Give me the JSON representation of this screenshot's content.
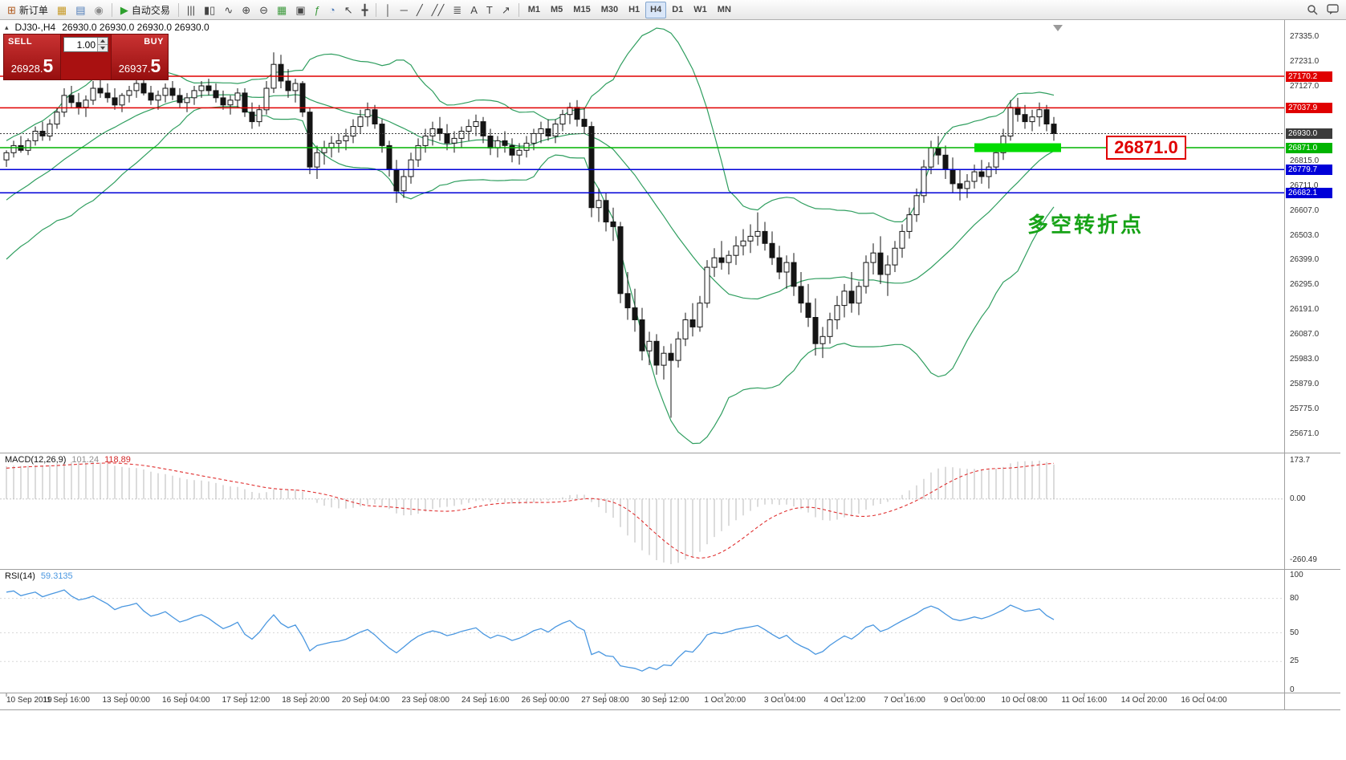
{
  "toolbar": {
    "new_order": {
      "label": "新订单",
      "glyph": "⊞"
    },
    "autotrading": {
      "label": "自动交易",
      "glyph": "▶"
    },
    "icons_left": [
      {
        "name": "charts-grid-icon",
        "glyph": "▦",
        "color": "#c89b28"
      },
      {
        "name": "market-watch-icon",
        "glyph": "▤",
        "color": "#4f7cb8"
      },
      {
        "name": "navigator-icon",
        "glyph": "◉",
        "color": "#8a8a8a"
      }
    ],
    "icons_chart": [
      {
        "name": "bar-chart-icon",
        "glyph": "|||",
        "color": "#444444"
      },
      {
        "name": "candlestick-chart-icon",
        "glyph": "▮▯",
        "color": "#444444"
      },
      {
        "name": "line-chart-icon",
        "glyph": "∿",
        "color": "#444444"
      },
      {
        "name": "zoom-in-icon",
        "glyph": "⊕",
        "color": "#444444"
      },
      {
        "name": "zoom-out-icon",
        "glyph": "⊖",
        "color": "#444444"
      },
      {
        "name": "tile-windows-icon",
        "glyph": "▦",
        "color": "#3d9a3d"
      },
      {
        "name": "cascade-windows-icon",
        "glyph": "▣",
        "color": "#444444"
      },
      {
        "name": "indicators-icon",
        "glyph": "ƒ",
        "color": "#3d9a3d"
      },
      {
        "name": "periods-icon",
        "glyph": "◔",
        "color": "#4f7cb8"
      }
    ],
    "icons_cursor": [
      {
        "name": "cursor-icon",
        "glyph": "↖",
        "color": "#444444"
      },
      {
        "name": "crosshair-icon",
        "glyph": "╋",
        "color": "#444444"
      }
    ],
    "icons_draw": [
      {
        "name": "vertical-line-icon",
        "glyph": "│",
        "color": "#444444"
      },
      {
        "name": "horizontal-line-icon",
        "glyph": "─",
        "color": "#444444"
      },
      {
        "name": "trendline-icon",
        "glyph": "╱",
        "color": "#444444"
      },
      {
        "name": "channel-icon",
        "glyph": "╱╱",
        "color": "#444444"
      },
      {
        "name": "fibonacci-icon",
        "glyph": "≣",
        "color": "#444444"
      },
      {
        "name": "text-icon",
        "glyph": "A",
        "color": "#444444"
      },
      {
        "name": "label-icon",
        "glyph": "T",
        "color": "#444444"
      },
      {
        "name": "arrows-icon",
        "glyph": "↗",
        "color": "#444444"
      }
    ],
    "timeframes": [
      "M1",
      "M5",
      "M15",
      "M30",
      "H1",
      "H4",
      "D1",
      "W1",
      "MN"
    ],
    "active_timeframe": "H4"
  },
  "chart": {
    "collapse_icon": "▴",
    "title_symbol": "DJ30-,H4",
    "title_ohlc": "26930.0 26930.0 26930.0 26930.0",
    "trade_panel": {
      "sell_label": "SELL",
      "buy_label": "BUY",
      "volume": "1.00",
      "sell_price_main": "26928",
      "sell_price_big": "5",
      "buy_price_main": "26937",
      "buy_price_big": "5"
    },
    "annotation": {
      "text": "多空转折点",
      "color": "#17a317"
    },
    "price_callout": {
      "text": "26871.0",
      "color": "#e00000"
    },
    "levels": [
      {
        "value": 27170.2,
        "label": "27170.2",
        "color": "#e00000",
        "style": "solid"
      },
      {
        "value": 27037.9,
        "label": "27037.9",
        "color": "#e00000",
        "style": "solid"
      },
      {
        "value": 26930.0,
        "label": "26930.0",
        "color": "#3c3c3c",
        "style": "dotted"
      },
      {
        "value": 26871.0,
        "label": "26871.0",
        "color": "#00b400",
        "style": "solid"
      },
      {
        "value": 26779.7,
        "label": "26779.7",
        "color": "#0000d8",
        "style": "solid"
      },
      {
        "value": 26682.1,
        "label": "26682.1",
        "color": "#0000d8",
        "style": "solid"
      }
    ],
    "highlight": {
      "value": 26871.0,
      "from_bar": 134,
      "to_bar": 146,
      "color": "#00dc00"
    },
    "y_ticks": [
      27335.0,
      27231.0,
      27127.0,
      26815.0,
      26711.0,
      26607.0,
      26503.0,
      26399.0,
      26295.0,
      26191.0,
      26087.0,
      25983.0,
      25879.0,
      25775.0,
      25671.0
    ],
    "y_range": [
      25671.0,
      27335.0
    ]
  },
  "chart_data": {
    "type": "candlestick",
    "symbol": "DJ30-",
    "timeframe": "H4",
    "title": "DJ30-,H4 26930.0 26930.0 26930.0 26930.0",
    "x_labels": [
      "10 Sep 2019",
      "11 Sep 16:00",
      "13 Sep 00:00",
      "16 Sep 04:00",
      "17 Sep 12:00",
      "18 Sep 20:00",
      "20 Sep 04:00",
      "23 Sep 08:00",
      "24 Sep 16:00",
      "26 Sep 00:00",
      "27 Sep 08:00",
      "30 Sep 12:00",
      "1 Oct 20:00",
      "3 Oct 04:00",
      "4 Oct 12:00",
      "7 Oct 16:00",
      "9 Oct 00:00",
      "10 Oct 08:00",
      "11 Oct 16:00",
      "14 Oct 20:00",
      "16 Oct 04:00"
    ],
    "pre_closes": [
      26200,
      26230,
      26210,
      26260,
      26300,
      26280,
      26330,
      26370,
      26350,
      26400,
      26440,
      26420,
      26470,
      26510,
      26490,
      26540,
      26580,
      26560,
      26610,
      26650,
      26630,
      26670,
      26700,
      26690,
      26730,
      26760,
      26750,
      26790,
      26810,
      26830
    ],
    "candles": [
      [
        26820,
        26860,
        26790,
        26850
      ],
      [
        26850,
        26900,
        26830,
        26880
      ],
      [
        26880,
        26920,
        26850,
        26860
      ],
      [
        26860,
        26910,
        26840,
        26900
      ],
      [
        26900,
        26960,
        26880,
        26940
      ],
      [
        26940,
        26980,
        26900,
        26920
      ],
      [
        26920,
        26990,
        26900,
        26970
      ],
      [
        26970,
        27040,
        26950,
        27020
      ],
      [
        27020,
        27120,
        27000,
        27090
      ],
      [
        27090,
        27130,
        27040,
        27060
      ],
      [
        27060,
        27100,
        27010,
        27040
      ],
      [
        27040,
        27090,
        27000,
        27070
      ],
      [
        27070,
        27150,
        27050,
        27120
      ],
      [
        27120,
        27160,
        27080,
        27100
      ],
      [
        27100,
        27140,
        27060,
        27080
      ],
      [
        27080,
        27120,
        27030,
        27050
      ],
      [
        27050,
        27100,
        27020,
        27090
      ],
      [
        27090,
        27130,
        27060,
        27110
      ],
      [
        27110,
        27170,
        27080,
        27140
      ],
      [
        27140,
        27160,
        27090,
        27100
      ],
      [
        27100,
        27130,
        27050,
        27070
      ],
      [
        27070,
        27110,
        27030,
        27090
      ],
      [
        27090,
        27140,
        27060,
        27120
      ],
      [
        27120,
        27150,
        27070,
        27090
      ],
      [
        27090,
        27120,
        27040,
        27060
      ],
      [
        27060,
        27100,
        27020,
        27080
      ],
      [
        27080,
        27130,
        27050,
        27110
      ],
      [
        27110,
        27150,
        27080,
        27130
      ],
      [
        27130,
        27160,
        27090,
        27110
      ],
      [
        27110,
        27140,
        27060,
        27080
      ],
      [
        27080,
        27110,
        27030,
        27050
      ],
      [
        27050,
        27090,
        27010,
        27070
      ],
      [
        27070,
        27120,
        27040,
        27100
      ],
      [
        27100,
        27120,
        27000,
        27020
      ],
      [
        27020,
        27060,
        26950,
        26980
      ],
      [
        26980,
        27050,
        26960,
        27030
      ],
      [
        27030,
        27150,
        27010,
        27120
      ],
      [
        27120,
        27270,
        27100,
        27220
      ],
      [
        27220,
        27260,
        27120,
        27150
      ],
      [
        27150,
        27200,
        27080,
        27110
      ],
      [
        27110,
        27160,
        27060,
        27140
      ],
      [
        27140,
        27150,
        27000,
        27020
      ],
      [
        27020,
        27040,
        26760,
        26790
      ],
      [
        26790,
        26880,
        26740,
        26850
      ],
      [
        26850,
        26900,
        26800,
        26870
      ],
      [
        26870,
        26920,
        26830,
        26890
      ],
      [
        26890,
        26930,
        26850,
        26900
      ],
      [
        26900,
        26950,
        26860,
        26920
      ],
      [
        26920,
        26990,
        26890,
        26960
      ],
      [
        26960,
        27030,
        26930,
        27000
      ],
      [
        27000,
        27060,
        26960,
        27030
      ],
      [
        27030,
        27050,
        26950,
        26970
      ],
      [
        26970,
        26990,
        26850,
        26880
      ],
      [
        26880,
        26900,
        26750,
        26780
      ],
      [
        26780,
        26820,
        26640,
        26690
      ],
      [
        26690,
        26780,
        26660,
        26750
      ],
      [
        26750,
        26850,
        26720,
        26820
      ],
      [
        26820,
        26910,
        26790,
        26880
      ],
      [
        26880,
        26950,
        26850,
        26920
      ],
      [
        26920,
        26980,
        26880,
        26950
      ],
      [
        26950,
        27000,
        26900,
        26930
      ],
      [
        26930,
        26970,
        26860,
        26890
      ],
      [
        26890,
        26940,
        26850,
        26910
      ],
      [
        26910,
        26960,
        26870,
        26940
      ],
      [
        26940,
        26990,
        26900,
        26960
      ],
      [
        26960,
        27010,
        26920,
        26980
      ],
      [
        26980,
        27000,
        26890,
        26920
      ],
      [
        26920,
        26950,
        26840,
        26870
      ],
      [
        26870,
        26920,
        26830,
        26900
      ],
      [
        26900,
        26940,
        26850,
        26880
      ],
      [
        26880,
        26910,
        26810,
        26840
      ],
      [
        26840,
        26890,
        26800,
        26860
      ],
      [
        26860,
        26920,
        26830,
        26890
      ],
      [
        26890,
        26950,
        26860,
        26930
      ],
      [
        26930,
        26980,
        26890,
        26950
      ],
      [
        26950,
        26990,
        26900,
        26920
      ],
      [
        26920,
        26990,
        26890,
        26970
      ],
      [
        26970,
        27030,
        26940,
        27010
      ],
      [
        27010,
        27060,
        26970,
        27040
      ],
      [
        27040,
        27070,
        26960,
        26990
      ],
      [
        26990,
        27040,
        26930,
        26960
      ],
      [
        26960,
        26980,
        26580,
        26620
      ],
      [
        26620,
        26700,
        26560,
        26650
      ],
      [
        26650,
        26680,
        26520,
        26560
      ],
      [
        26560,
        26620,
        26480,
        26540
      ],
      [
        26540,
        26560,
        26220,
        26260
      ],
      [
        26260,
        26350,
        26150,
        26200
      ],
      [
        26200,
        26280,
        26100,
        26150
      ],
      [
        26150,
        26200,
        25980,
        26020
      ],
      [
        26020,
        26100,
        25960,
        26060
      ],
      [
        26060,
        26090,
        25920,
        25960
      ],
      [
        25960,
        26040,
        25900,
        26010
      ],
      [
        26010,
        26050,
        25740,
        25980
      ],
      [
        25980,
        26100,
        25950,
        26070
      ],
      [
        26070,
        26180,
        26040,
        26150
      ],
      [
        26150,
        26220,
        26080,
        26120
      ],
      [
        26120,
        26250,
        26100,
        26220
      ],
      [
        26220,
        26400,
        26200,
        26370
      ],
      [
        26370,
        26450,
        26330,
        26410
      ],
      [
        26410,
        26480,
        26360,
        26390
      ],
      [
        26390,
        26440,
        26340,
        26420
      ],
      [
        26420,
        26500,
        26380,
        26460
      ],
      [
        26460,
        26530,
        26420,
        26480
      ],
      [
        26480,
        26550,
        26430,
        26500
      ],
      [
        26500,
        26600,
        26460,
        26520
      ],
      [
        26520,
        26560,
        26440,
        26470
      ],
      [
        26470,
        26520,
        26380,
        26410
      ],
      [
        26410,
        26460,
        26320,
        26350
      ],
      [
        26350,
        26420,
        26280,
        26390
      ],
      [
        26390,
        26430,
        26250,
        26290
      ],
      [
        26290,
        26350,
        26180,
        26220
      ],
      [
        26220,
        26300,
        26120,
        26160
      ],
      [
        26160,
        26240,
        26000,
        26050
      ],
      [
        26050,
        26120,
        25990,
        26080
      ],
      [
        26080,
        26180,
        26050,
        26150
      ],
      [
        26150,
        26250,
        26110,
        26210
      ],
      [
        26210,
        26300,
        26160,
        26270
      ],
      [
        26270,
        26350,
        26180,
        26220
      ],
      [
        26220,
        26310,
        26170,
        26290
      ],
      [
        26290,
        26420,
        26260,
        26390
      ],
      [
        26390,
        26470,
        26340,
        26430
      ],
      [
        26430,
        26500,
        26300,
        26340
      ],
      [
        26340,
        26420,
        26250,
        26380
      ],
      [
        26380,
        26480,
        26350,
        26450
      ],
      [
        26450,
        26550,
        26410,
        26520
      ],
      [
        26520,
        26620,
        26490,
        26590
      ],
      [
        26590,
        26700,
        26560,
        26670
      ],
      [
        26670,
        26820,
        26640,
        26790
      ],
      [
        26790,
        26900,
        26760,
        26870
      ],
      [
        26870,
        26920,
        26800,
        26840
      ],
      [
        26840,
        26880,
        26740,
        26780
      ],
      [
        26780,
        26830,
        26680,
        26720
      ],
      [
        26720,
        26780,
        26650,
        26700
      ],
      [
        26700,
        26760,
        26660,
        26730
      ],
      [
        26730,
        26800,
        26700,
        26770
      ],
      [
        26770,
        26820,
        26720,
        26750
      ],
      [
        26750,
        26810,
        26700,
        26790
      ],
      [
        26790,
        26870,
        26760,
        26850
      ],
      [
        26850,
        26950,
        26820,
        26920
      ],
      [
        26920,
        27070,
        26900,
        27040
      ],
      [
        27040,
        27080,
        26980,
        27010
      ],
      [
        27010,
        27050,
        26950,
        26980
      ],
      [
        26980,
        27030,
        26940,
        27000
      ],
      [
        27000,
        27060,
        26960,
        27030
      ],
      [
        27030,
        27050,
        26940,
        26970
      ],
      [
        26970,
        27000,
        26900,
        26930
      ]
    ],
    "bollinger": {
      "period": 20,
      "deviation": 2,
      "color": "#2f9e5f"
    },
    "macd": {
      "label": "MACD(12,26,9)",
      "value_main": "101.24",
      "value_signal": "118.89",
      "axis_top": "173.7",
      "axis_zero": "0.00",
      "axis_bottom": "-260.49",
      "histogram_color": "#b9b9b9",
      "signal_color": "#e03030"
    },
    "rsi": {
      "label": "RSI(14)",
      "value": "59.3135",
      "color": "#4a97e0",
      "levels": [
        80,
        50,
        25
      ],
      "axis_labels": [
        100,
        80,
        50,
        25,
        0
      ]
    }
  }
}
